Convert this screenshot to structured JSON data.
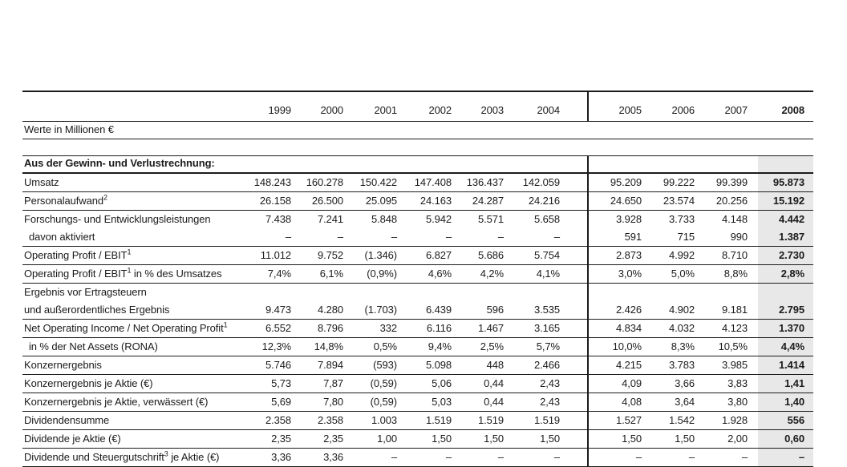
{
  "table": {
    "unit_label": "Werte in Millionen €",
    "section_title": "Aus der Gewinn- und Verlustrechnung:",
    "years": [
      "1999",
      "2000",
      "2001",
      "2002",
      "2003",
      "2004",
      "2005",
      "2006",
      "2007",
      "2008"
    ],
    "shaded_column": "2008",
    "colors": {
      "shaded_column_bg": "#e8e8e8",
      "rule": "#1b1b1b"
    },
    "rows": [
      {
        "lines": [
          {
            "text": "Umsatz",
            "values": [
              "148.243",
              "160.278",
              "150.422",
              "147.408",
              "136.437",
              "142.059",
              "95.209",
              "99.222",
              "99.399",
              "95.873"
            ]
          }
        ]
      },
      {
        "lines": [
          {
            "text": "Personalaufwand",
            "sup": "2",
            "values": [
              "26.158",
              "26.500",
              "25.095",
              "24.163",
              "24.287",
              "24.216",
              "24.650",
              "23.574",
              "20.256",
              "15.192"
            ]
          }
        ]
      },
      {
        "lines": [
          {
            "text": "Forschungs- und Entwicklungsleistungen",
            "values": [
              "7.438",
              "7.241",
              "5.848",
              "5.942",
              "5.571",
              "5.658",
              "3.928",
              "3.733",
              "4.148",
              "4.442"
            ]
          },
          {
            "text": "davon aktiviert",
            "indent": true,
            "values": [
              "–",
              "–",
              "–",
              "–",
              "–",
              "–",
              "591",
              "715",
              "990",
              "1.387"
            ]
          }
        ]
      },
      {
        "lines": [
          {
            "text": "Operating Profit / EBIT",
            "sup": "1",
            "values": [
              "11.012",
              "9.752",
              "(1.346)",
              "6.827",
              "5.686",
              "5.754",
              "2.873",
              "4.992",
              "8.710",
              "2.730"
            ]
          }
        ]
      },
      {
        "lines": [
          {
            "text": "Operating Profit / EBIT",
            "sup": "1",
            "post": " in % des Umsatzes",
            "values": [
              "7,4%",
              "6,1%",
              "(0,9%)",
              "4,6%",
              "4,2%",
              "4,1%",
              "3,0%",
              "5,0%",
              "8,8%",
              "2,8%"
            ]
          }
        ]
      },
      {
        "lines": [
          {
            "text": "Ergebnis vor Ertragsteuern",
            "values": null
          },
          {
            "text": "und außerordentliches Ergebnis",
            "values": [
              "9.473",
              "4.280",
              "(1.703)",
              "6.439",
              "596",
              "3.535",
              "2.426",
              "4.902",
              "9.181",
              "2.795"
            ]
          }
        ]
      },
      {
        "lines": [
          {
            "text": "Net Operating Income / Net Operating Profit",
            "sup": "1",
            "values": [
              "6.552",
              "8.796",
              "332",
              "6.116",
              "1.467",
              "3.165",
              "4.834",
              "4.032",
              "4.123",
              "1.370"
            ]
          }
        ]
      },
      {
        "lines": [
          {
            "text": "in % der Net Assets (RONA)",
            "indent": true,
            "values": [
              "12,3%",
              "14,8%",
              "0,5%",
              "9,4%",
              "2,5%",
              "5,7%",
              "10,0%",
              "8,3%",
              "10,5%",
              "4,4%"
            ]
          }
        ]
      },
      {
        "lines": [
          {
            "text": "Konzernergebnis",
            "values": [
              "5.746",
              "7.894",
              "(593)",
              "5.098",
              "448",
              "2.466",
              "4.215",
              "3.783",
              "3.985",
              "1.414"
            ]
          }
        ]
      },
      {
        "lines": [
          {
            "text": "Konzernergebnis je Aktie (€)",
            "values": [
              "5,73",
              "7,87",
              "(0,59)",
              "5,06",
              "0,44",
              "2,43",
              "4,09",
              "3,66",
              "3,83",
              "1,41"
            ]
          }
        ]
      },
      {
        "lines": [
          {
            "text": "Konzernergebnis je Aktie, verwässert (€)",
            "values": [
              "5,69",
              "7,80",
              "(0,59)",
              "5,03",
              "0,44",
              "2,43",
              "4,08",
              "3,64",
              "3,80",
              "1,40"
            ]
          }
        ]
      },
      {
        "lines": [
          {
            "text": "Dividendensumme",
            "values": [
              "2.358",
              "2.358",
              "1.003",
              "1.519",
              "1.519",
              "1.519",
              "1.527",
              "1.542",
              "1.928",
              "556"
            ]
          }
        ]
      },
      {
        "lines": [
          {
            "text": "Dividende je Aktie (€)",
            "values": [
              "2,35",
              "2,35",
              "1,00",
              "1,50",
              "1,50",
              "1,50",
              "1,50",
              "1,50",
              "2,00",
              "0,60"
            ]
          }
        ]
      },
      {
        "lines": [
          {
            "text": "Dividende und Steuergutschrift",
            "sup": "3",
            "post": " je Aktie (€)",
            "values": [
              "3,36",
              "3,36",
              "–",
              "–",
              "–",
              "–",
              "–",
              "–",
              "–",
              "–"
            ]
          }
        ]
      }
    ]
  }
}
